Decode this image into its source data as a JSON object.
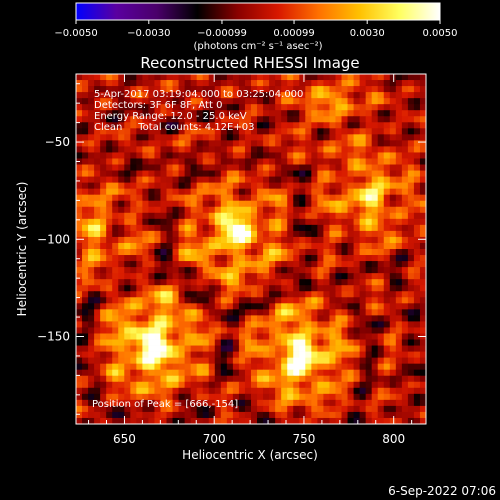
{
  "chart_data": {
    "type": "heatmap",
    "title": "Reconstructed RHESSI Image",
    "xlabel": "Heliocentric X (arcsec)",
    "ylabel": "Heliocentric Y (arcsec)",
    "xlim": [
      623,
      818
    ],
    "ylim": [
      -195,
      -15
    ],
    "x_ticks": [
      650,
      700,
      750,
      800
    ],
    "x_tick_labels": [
      "650",
      "700",
      "750",
      "800"
    ],
    "y_ticks": [
      -50,
      -100,
      -150
    ],
    "y_tick_labels": [
      "−50",
      "−100",
      "−150"
    ],
    "colorbar": {
      "range": [
        -0.005,
        0.005
      ],
      "ticks": [
        -0.005,
        -0.003,
        -0.00099,
        0.00099,
        0.003,
        0.005
      ],
      "tick_labels": [
        "−0.0050",
        "−0.0030",
        "−0.00099",
        "0.00099",
        "0.0030",
        "0.0050"
      ],
      "unit_label": "(photons cm⁻² s⁻¹ asec⁻²)"
    },
    "annotations": [
      "5-Apr-2017 03:19:04.000 to 03:25:04.000",
      "Detectors: 3F 6F 8F, Att 0",
      "Energy Range: 12.0 - 25.0 keV",
      "Clean     Total counts: 4.12E+03"
    ],
    "peak_label": "Position of Peak = [666,-154]",
    "sources": [
      {
        "x": 666,
        "y": -154,
        "peak": 0.005
      },
      {
        "x": 748,
        "y": -160,
        "peak": 0.0046
      },
      {
        "x": 712,
        "y": -97,
        "peak": 0.004
      },
      {
        "x": 787,
        "y": -78,
        "peak": 0.003
      },
      {
        "x": 632,
        "y": -95,
        "peak": 0.0022
      },
      {
        "x": 765,
        "y": -28,
        "peak": 0.0018
      }
    ],
    "colormap": [
      "#0000ff",
      "#5a00a0",
      "#4a006a",
      "#000000",
      "#8a0000",
      "#d81800",
      "#ff7000",
      "#ffc000",
      "#ffff60",
      "#ffffff"
    ]
  },
  "footer": {
    "date": "6-Sep-2022 07:06"
  }
}
